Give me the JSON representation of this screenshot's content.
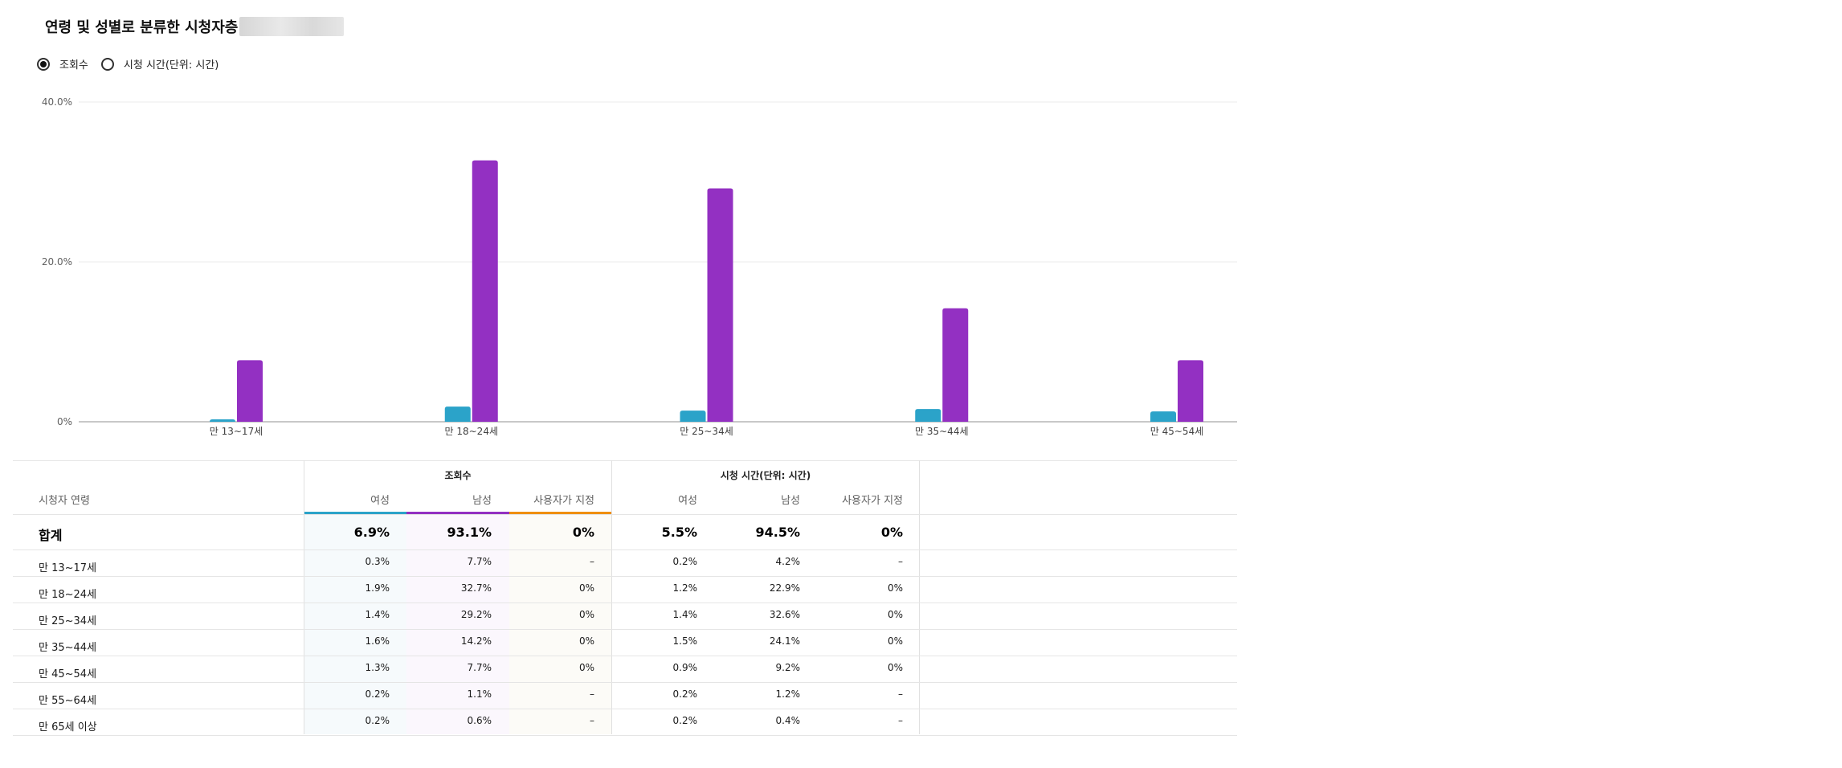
{
  "title": "연령 및 성별로 분류한 시청자층",
  "metric_options": [
    {
      "label": "조회수",
      "selected": true
    },
    {
      "label": "시청 시간(단위: 시간)",
      "selected": false
    }
  ],
  "colors": {
    "female": "#2ba3c9",
    "male": "#9330c2",
    "custom": "#ef8f10"
  },
  "chart_data": {
    "type": "bar",
    "categories": [
      "만 13~17세",
      "만 18~24세",
      "만 25~34세",
      "만 35~44세",
      "만 45~54세"
    ],
    "series": [
      {
        "name": "여성",
        "values": [
          0.3,
          1.9,
          1.4,
          1.6,
          1.3
        ]
      },
      {
        "name": "남성",
        "values": [
          7.7,
          32.7,
          29.2,
          14.2,
          7.7
        ]
      }
    ],
    "yticks": [
      "0%",
      "20.0%",
      "40.0%"
    ],
    "ylim": [
      0,
      40
    ],
    "grid": true,
    "unit": "%"
  },
  "table": {
    "age_header": "시청자 연령",
    "groups": [
      "조회수",
      "시청 시간(단위: 시간)"
    ],
    "subheaders": [
      "여성",
      "남성",
      "사용자가 지정",
      "여성",
      "남성",
      "사용자가 지정"
    ],
    "total_label": "합계",
    "total": [
      "6.9%",
      "93.1%",
      "0%",
      "5.5%",
      "94.5%",
      "0%"
    ],
    "rows": [
      {
        "label": "만 13~17세",
        "values": [
          "0.3%",
          "7.7%",
          "–",
          "0.2%",
          "4.2%",
          "–"
        ]
      },
      {
        "label": "만 18~24세",
        "values": [
          "1.9%",
          "32.7%",
          "0%",
          "1.2%",
          "22.9%",
          "0%"
        ]
      },
      {
        "label": "만 25~34세",
        "values": [
          "1.4%",
          "29.2%",
          "0%",
          "1.4%",
          "32.6%",
          "0%"
        ]
      },
      {
        "label": "만 35~44세",
        "values": [
          "1.6%",
          "14.2%",
          "0%",
          "1.5%",
          "24.1%",
          "0%"
        ]
      },
      {
        "label": "만 45~54세",
        "values": [
          "1.3%",
          "7.7%",
          "0%",
          "0.9%",
          "9.2%",
          "0%"
        ]
      },
      {
        "label": "만 55~64세",
        "values": [
          "0.2%",
          "1.1%",
          "–",
          "0.2%",
          "1.2%",
          "–"
        ]
      },
      {
        "label": "만 65세 이상",
        "values": [
          "0.2%",
          "0.6%",
          "–",
          "0.2%",
          "0.4%",
          "–"
        ]
      }
    ]
  }
}
